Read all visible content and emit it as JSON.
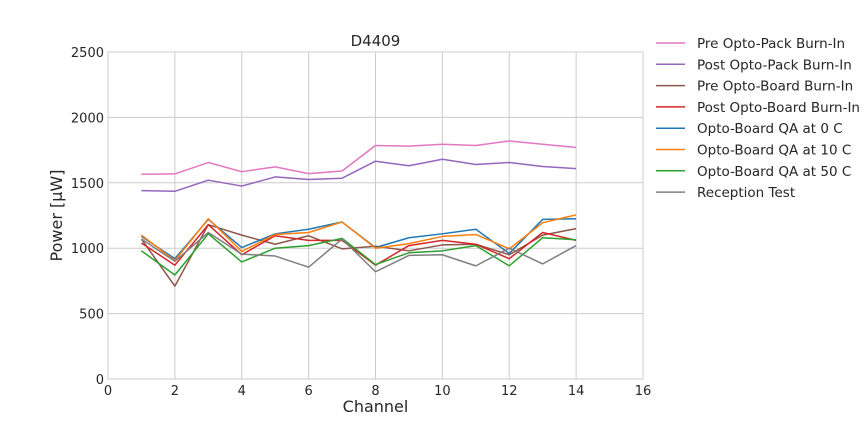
{
  "chart_data": {
    "type": "line",
    "title": "D4409",
    "xlabel": "Channel",
    "ylabel": "Power [μW]",
    "xlim": [
      0,
      16
    ],
    "ylim": [
      0,
      2500
    ],
    "xticks": [
      0,
      2,
      4,
      6,
      8,
      10,
      12,
      14,
      16
    ],
    "yticks": [
      0,
      500,
      1000,
      1500,
      2000,
      2500
    ],
    "grid": true,
    "legend_position": "outside-right",
    "x": [
      1,
      2,
      3,
      4,
      5,
      6,
      7,
      8,
      9,
      10,
      11,
      12,
      13,
      14
    ],
    "series": [
      {
        "name": "Pre Opto-Pack Burn-In",
        "color": "#e377c2",
        "values": [
          1565,
          1568,
          1655,
          1585,
          1622,
          1570,
          1590,
          1785,
          1780,
          1795,
          1785,
          1820,
          1795,
          1770
        ]
      },
      {
        "name": "Post Opto-Pack Burn-In",
        "color": "#9467bd",
        "values": [
          1440,
          1435,
          1520,
          1475,
          1545,
          1525,
          1535,
          1665,
          1630,
          1680,
          1640,
          1655,
          1625,
          1608
        ]
      },
      {
        "name": "Pre Opto-Board Burn-In",
        "color": "#8c564b",
        "values": [
          1070,
          710,
          1180,
          1100,
          1030,
          1095,
          995,
          1015,
          980,
          1025,
          1030,
          950,
          1100,
          1150
        ]
      },
      {
        "name": "Post Opto-Board Burn-In",
        "color": "#d62728",
        "values": [
          1040,
          870,
          1180,
          950,
          1095,
          1060,
          1060,
          870,
          1020,
          1060,
          1030,
          920,
          1120,
          1060
        ]
      },
      {
        "name": "Opto-Board QA at 0 C",
        "color": "#1f77b4",
        "values": [
          1090,
          920,
          1220,
          1005,
          1110,
          1145,
          1200,
          1005,
          1080,
          1110,
          1145,
          960,
          1220,
          1225
        ]
      },
      {
        "name": "Opto-Board QA at 10 C",
        "color": "#ff7f0e",
        "values": [
          1100,
          905,
          1225,
          975,
          1105,
          1120,
          1200,
          1000,
          1035,
          1090,
          1105,
          995,
          1195,
          1255
        ]
      },
      {
        "name": "Opto-Board QA at 50 C",
        "color": "#2ca02c",
        "values": [
          980,
          795,
          1110,
          895,
          1000,
          1020,
          1075,
          875,
          965,
          980,
          1020,
          865,
          1080,
          1065
        ]
      },
      {
        "name": "Reception Test",
        "color": "#7f7f7f",
        "values": [
          1070,
          900,
          1120,
          955,
          940,
          855,
          1070,
          820,
          945,
          950,
          865,
          1000,
          880,
          1020
        ]
      }
    ]
  }
}
